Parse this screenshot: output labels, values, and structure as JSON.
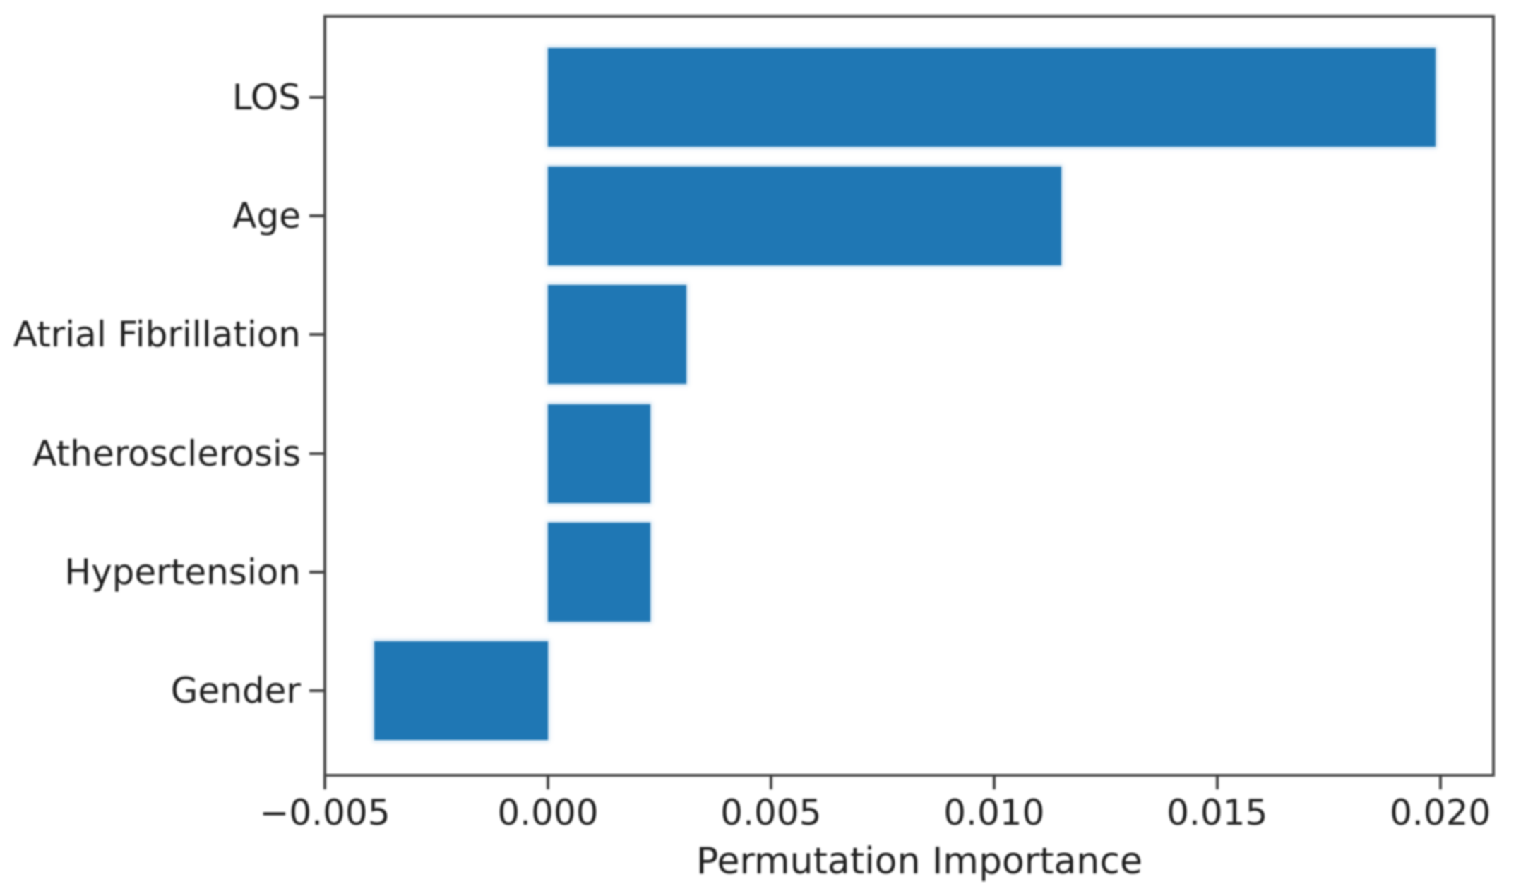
{
  "chart_data": {
    "type": "bar",
    "orientation": "horizontal",
    "title": "",
    "xlabel": "Permutation Importance",
    "categories": [
      "LOS",
      "Age",
      "Atrial Fibrillation",
      "Atherosclerosis",
      "Hypertension",
      "Gender"
    ],
    "values": [
      0.0199,
      0.0115,
      0.0031,
      0.0023,
      0.0023,
      -0.0039
    ],
    "bar_color": "#1f77b4",
    "xlim": [
      -0.005,
      0.02116
    ],
    "xticks": [
      {
        "value": -0.005,
        "label": "−0.005"
      },
      {
        "value": 0.0,
        "label": "0.000"
      },
      {
        "value": 0.005,
        "label": "0.005"
      },
      {
        "value": 0.01,
        "label": "0.010"
      },
      {
        "value": 0.015,
        "label": "0.015"
      },
      {
        "value": 0.02,
        "label": "0.020"
      }
    ],
    "grid": false,
    "legend": null,
    "spine_color": "#484848",
    "text_color": "#1e1e1e"
  }
}
